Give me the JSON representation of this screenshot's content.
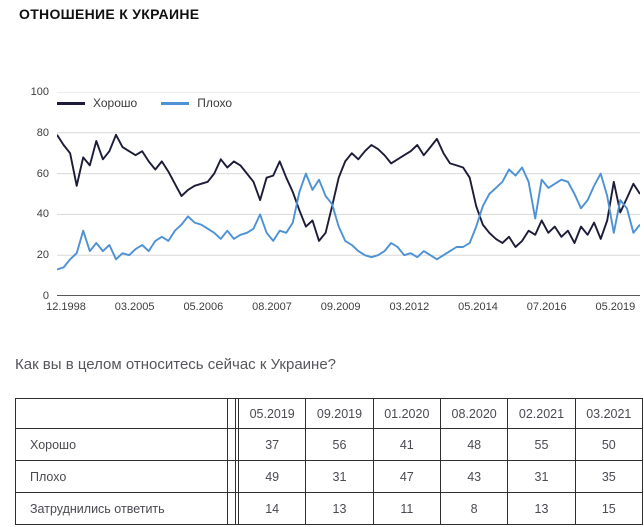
{
  "page": {
    "title": "ОТНОШЕНИЕ К УКРАИНЕ",
    "question": "Как вы в целом относитесь сейчас к Украине?"
  },
  "chart_data": {
    "type": "line",
    "title": "",
    "xlabel": "",
    "ylabel": "",
    "ylim": [
      0,
      100
    ],
    "yticks": [
      0,
      20,
      40,
      60,
      80,
      100
    ],
    "grid": true,
    "legend_position": "top-left-inside",
    "grid_color": "#d8d8d8",
    "axis_color": "#5a5a5a",
    "xticklabels": [
      "12.1998",
      "03.2005",
      "05.2006",
      "08.2007",
      "09.2009",
      "03.2012",
      "05.2014",
      "07.2016",
      "05.2019"
    ],
    "series": [
      {
        "name": "Хорошо",
        "color": "#1c1c38",
        "values": [
          79,
          74,
          70,
          54,
          68,
          64,
          76,
          67,
          71,
          79,
          73,
          71,
          69,
          71,
          66,
          62,
          66,
          61,
          55,
          49,
          52,
          54,
          55,
          56,
          60,
          67,
          63,
          66,
          64,
          60,
          56,
          47,
          58,
          59,
          66,
          58,
          51,
          42,
          34,
          37,
          27,
          31,
          44,
          58,
          66,
          70,
          67,
          71,
          74,
          72,
          69,
          65,
          67,
          69,
          71,
          74,
          69,
          73,
          77,
          70,
          65,
          64,
          63,
          58,
          44,
          35,
          31,
          28,
          26,
          29,
          24,
          27,
          32,
          30,
          37,
          31,
          34,
          29,
          32,
          26,
          34,
          30,
          36,
          28,
          37,
          56,
          41,
          48,
          55,
          50
        ]
      },
      {
        "name": "Плохо",
        "color": "#4d92d4",
        "values": [
          13,
          14,
          18,
          21,
          32,
          22,
          26,
          22,
          25,
          18,
          21,
          20,
          23,
          25,
          22,
          27,
          29,
          27,
          32,
          35,
          39,
          36,
          35,
          33,
          31,
          28,
          32,
          28,
          30,
          31,
          33,
          40,
          31,
          27,
          32,
          31,
          36,
          51,
          60,
          52,
          57,
          49,
          45,
          34,
          27,
          25,
          22,
          20,
          19,
          20,
          22,
          26,
          24,
          20,
          21,
          19,
          22,
          20,
          18,
          20,
          22,
          24,
          24,
          26,
          34,
          44,
          50,
          53,
          56,
          62,
          59,
          63,
          56,
          38,
          57,
          53,
          55,
          57,
          56,
          50,
          43,
          47,
          54,
          60,
          49,
          31,
          47,
          43,
          31,
          35
        ]
      }
    ]
  },
  "table": {
    "columns": [
      "05.2019",
      "09.2019",
      "01.2020",
      "08.2020",
      "02.2021",
      "03.2021"
    ],
    "rows": [
      {
        "label": "Хорошо",
        "values": [
          37,
          56,
          41,
          48,
          55,
          50
        ]
      },
      {
        "label": "Плохо",
        "values": [
          49,
          31,
          47,
          43,
          31,
          35
        ]
      },
      {
        "label": "Затруднились ответить",
        "values": [
          14,
          13,
          11,
          8,
          13,
          15
        ]
      }
    ]
  },
  "colors": {
    "text_muted": "#4a4a52",
    "tick_text": "#3d3d3d",
    "table_border": "#2e2e2e"
  }
}
